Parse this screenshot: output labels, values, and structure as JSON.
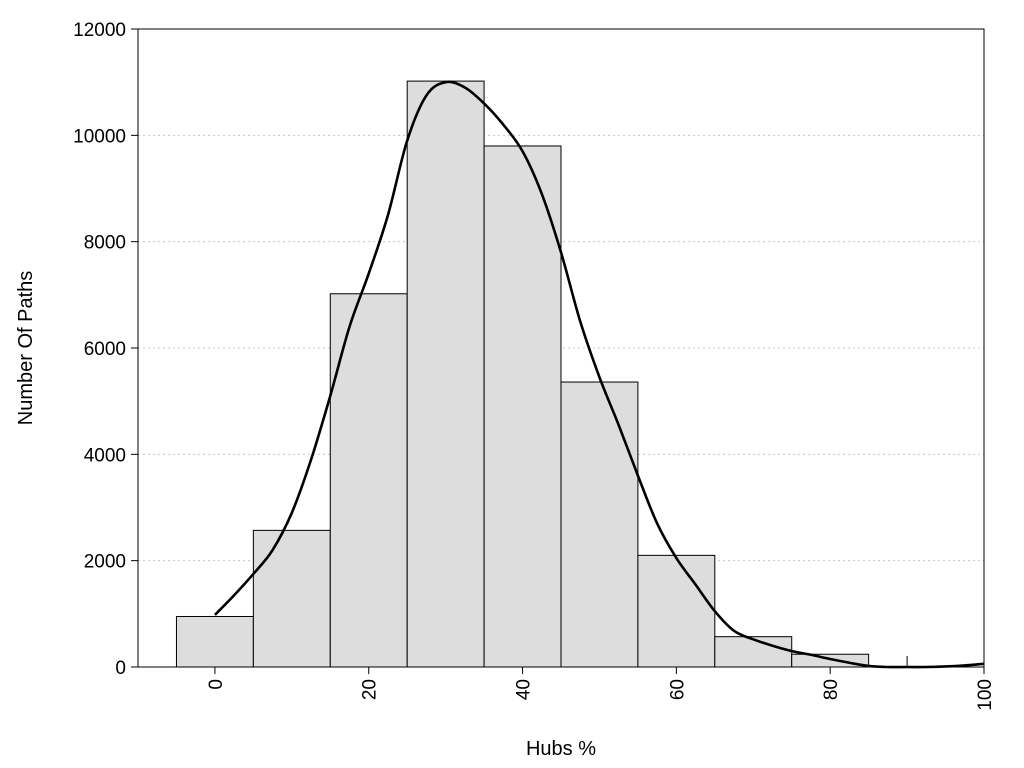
{
  "chart_data": {
    "type": "bar",
    "title": "",
    "xlabel": "Hubs %",
    "ylabel": "Number Of Paths",
    "x": [
      0,
      10,
      20,
      30,
      40,
      50,
      60,
      70,
      80,
      90,
      100
    ],
    "bin_width": 10,
    "series": [
      {
        "kind": "histogram",
        "values": [
          950,
          2570,
          7020,
          11020,
          9800,
          5360,
          2100,
          570,
          240,
          0,
          0
        ],
        "color": "#dddddd"
      },
      {
        "kind": "density-curve",
        "x": [
          0,
          2.5,
          5,
          7.5,
          10,
          12.5,
          15,
          17.5,
          20,
          22.5,
          25,
          27.5,
          30,
          32.5,
          35,
          37.5,
          40,
          42.5,
          45,
          47.5,
          50,
          52.5,
          55,
          57.5,
          60,
          62.5,
          65,
          67.5,
          70,
          72.5,
          75,
          77.5,
          80,
          82.5,
          85,
          87.5,
          90,
          92.5,
          95,
          97.5,
          100
        ],
        "values": [
          980,
          1350,
          1750,
          2200,
          2900,
          3900,
          5100,
          6400,
          7400,
          8500,
          9900,
          10750,
          11000,
          10900,
          10600,
          10200,
          9700,
          8900,
          7800,
          6500,
          5450,
          4550,
          3600,
          2700,
          2050,
          1550,
          1050,
          680,
          520,
          400,
          300,
          230,
          150,
          80,
          20,
          0,
          0,
          0,
          10,
          30,
          60
        ],
        "color": "#000000"
      }
    ],
    "xlim": [
      -10,
      100
    ],
    "ylim": [
      0,
      12000
    ],
    "xticks": [
      "0",
      "20",
      "40",
      "60",
      "80",
      "100"
    ],
    "yticks": [
      "0",
      "2000",
      "4000",
      "6000",
      "8000",
      "10000",
      "12000"
    ],
    "grid": "horizontal-dotted",
    "legend": "none"
  }
}
